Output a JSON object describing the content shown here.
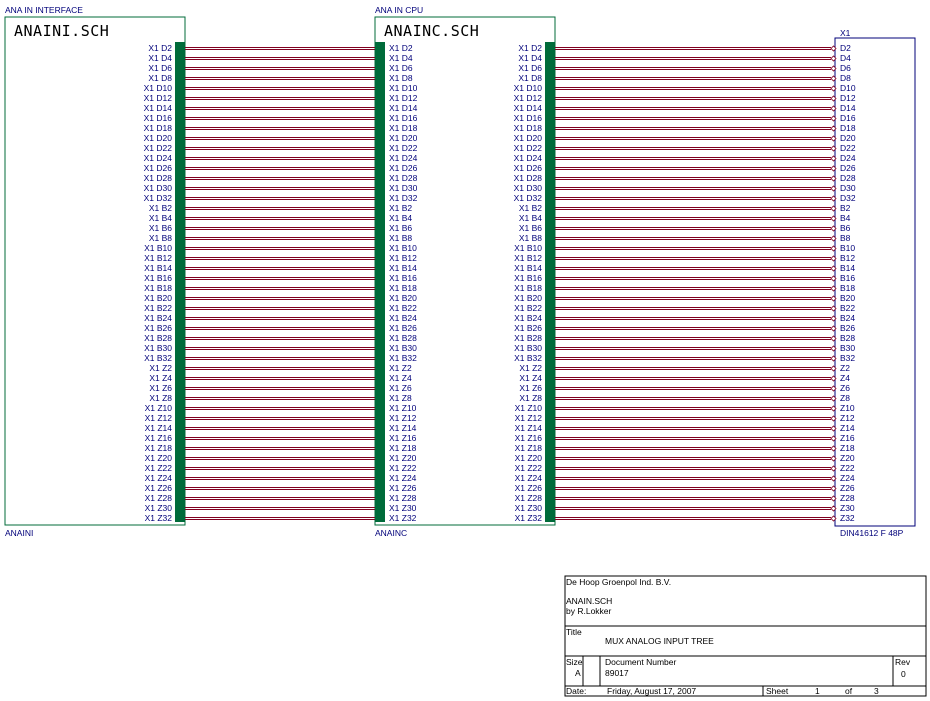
{
  "blocks": {
    "left": {
      "header": "ANA IN INTERFACE",
      "file": "ANAINI.SCH",
      "footer": "ANAINI"
    },
    "mid": {
      "header": "ANA IN CPU",
      "file": "ANAINC.SCH",
      "footer": "ANAINC"
    }
  },
  "connector": {
    "ref": "X1",
    "part": "DIN41612 F 48P"
  },
  "pin_prefix": "X1",
  "pins": [
    "D2",
    "D4",
    "D6",
    "D8",
    "D10",
    "D12",
    "D14",
    "D16",
    "D18",
    "D20",
    "D22",
    "D24",
    "D26",
    "D28",
    "D30",
    "D32",
    "B2",
    "B4",
    "B6",
    "B8",
    "B10",
    "B12",
    "B14",
    "B16",
    "B18",
    "B20",
    "B22",
    "B24",
    "B26",
    "B28",
    "B30",
    "B32",
    "Z2",
    "Z4",
    "Z6",
    "Z8",
    "Z10",
    "Z12",
    "Z14",
    "Z16",
    "Z18",
    "Z20",
    "Z22",
    "Z24",
    "Z26",
    "Z28",
    "Z30",
    "Z32"
  ],
  "title_block": {
    "company": "De Hoop Groenpol Ind. B.V.",
    "file": "ANAIN.SCH",
    "author": "by R.Lokker",
    "title_label": "Title",
    "title": "MUX ANALOG INPUT TREE",
    "size_label": "Size",
    "size": "A",
    "docnum_label": "Document Number",
    "docnum": "89017",
    "rev_label": "Rev",
    "rev": "0",
    "date_label": "Date:",
    "date": "Friday, August 17, 2007",
    "sheet_label": "Sheet",
    "sheet": "1",
    "of_label": "of",
    "sheets": "3"
  },
  "colors": {
    "bus": "#006b3a",
    "wire": "#800020",
    "text": "#00007a",
    "box_outline": "#006b3a",
    "connector_outline": "#00007a"
  }
}
